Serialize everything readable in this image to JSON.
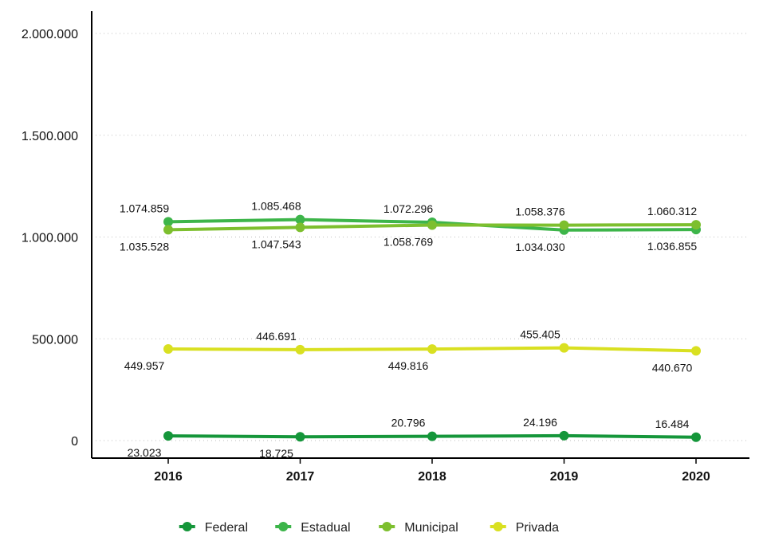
{
  "chart_data": {
    "type": "line",
    "categories": [
      "2016",
      "2017",
      "2018",
      "2019",
      "2020"
    ],
    "ylim": [
      0,
      2000000
    ],
    "yticks": [
      0,
      500000,
      1000000,
      1500000,
      2000000
    ],
    "ytick_labels": [
      "0",
      "500.000",
      "1.000.000",
      "1.500.000",
      "2.000.000"
    ],
    "grid": true,
    "legend_position": "bottom-center",
    "series": [
      {
        "name": "Federal",
        "color": "#15963a",
        "values": [
          23023,
          18725,
          20796,
          24196,
          16484
        ],
        "labels": [
          "23.023",
          "18.725",
          "20.796",
          "24.196",
          "16.484"
        ],
        "label_side": [
          "below",
          "below",
          "above",
          "above",
          "above"
        ]
      },
      {
        "name": "Estadual",
        "color": "#3db54a",
        "values": [
          1074859,
          1085468,
          1072296,
          1034030,
          1036855
        ],
        "labels": [
          "1.074.859",
          "1.085.468",
          "1.072.296",
          "1.034.030",
          "1.036.855"
        ],
        "label_side": [
          "above",
          "above",
          "above",
          "below",
          "below"
        ]
      },
      {
        "name": "Municipal",
        "color": "#7dbf2e",
        "values": [
          1035528,
          1047543,
          1058769,
          1058376,
          1060312
        ],
        "labels": [
          "1.035.528",
          "1.047.543",
          "1.058.769",
          "1.058.376",
          "1.060.312"
        ],
        "label_side": [
          "below",
          "below",
          "below",
          "above",
          "above"
        ]
      },
      {
        "name": "Privada",
        "color": "#d9e021",
        "values": [
          449957,
          446691,
          449816,
          455405,
          440670
        ],
        "labels": [
          "449.957",
          "446.691",
          "449.816",
          "455.405",
          "440.670"
        ],
        "label_side": [
          "below",
          "above",
          "below",
          "above",
          "below"
        ]
      }
    ]
  }
}
